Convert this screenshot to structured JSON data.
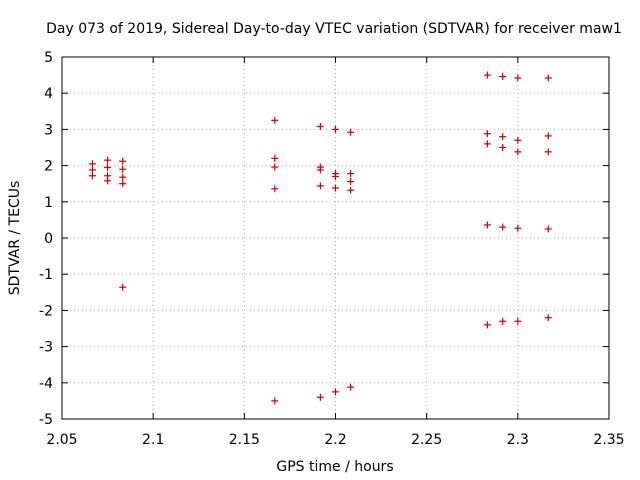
{
  "chart_data": {
    "type": "scatter",
    "title": "Day 073 of 2019, Sidereal Day-to-day VTEC variation (SDTVAR) for receiver maw1",
    "xlabel": "GPS time / hours",
    "ylabel": "SDTVAR / TECUs",
    "xlim": [
      2.05,
      2.35
    ],
    "ylim": [
      -5,
      5
    ],
    "xticks": [
      2.05,
      2.1,
      2.15,
      2.2,
      2.25,
      2.3,
      2.35
    ],
    "yticks": [
      -5,
      -4,
      -3,
      -2,
      -1,
      0,
      1,
      2,
      3,
      4,
      5
    ],
    "xtick_labels": [
      "2.05",
      "2.1",
      "2.15",
      "2.2",
      "2.25",
      "2.3",
      "2.35"
    ],
    "ytick_labels": [
      "-5",
      "-4",
      "-3",
      "-2",
      "-1",
      "0",
      "1",
      "2",
      "3",
      "4",
      "5"
    ],
    "grid": true,
    "marker": "+",
    "color": "#cc0000",
    "series": [
      {
        "name": "maw1",
        "points": [
          [
            2.0667,
            2.05
          ],
          [
            2.0667,
            1.88
          ],
          [
            2.0667,
            1.72
          ],
          [
            2.075,
            2.15
          ],
          [
            2.075,
            1.95
          ],
          [
            2.075,
            1.72
          ],
          [
            2.075,
            1.58
          ],
          [
            2.0833,
            2.12
          ],
          [
            2.0833,
            1.9
          ],
          [
            2.0833,
            1.68
          ],
          [
            2.0833,
            1.5
          ],
          [
            2.0833,
            -1.36
          ],
          [
            2.1667,
            3.25
          ],
          [
            2.1667,
            2.2
          ],
          [
            2.1667,
            1.96
          ],
          [
            2.1667,
            1.36
          ],
          [
            2.1667,
            -4.5
          ],
          [
            2.1917,
            3.08
          ],
          [
            2.1917,
            1.96
          ],
          [
            2.1917,
            1.88
          ],
          [
            2.1917,
            1.44
          ],
          [
            2.1917,
            -4.4
          ],
          [
            2.2,
            3.0
          ],
          [
            2.2,
            1.78
          ],
          [
            2.2,
            1.7
          ],
          [
            2.2,
            1.38
          ],
          [
            2.2,
            -4.25
          ],
          [
            2.2083,
            2.92
          ],
          [
            2.2083,
            1.78
          ],
          [
            2.2083,
            1.56
          ],
          [
            2.2083,
            1.32
          ],
          [
            2.2083,
            -4.12
          ],
          [
            2.2833,
            4.5
          ],
          [
            2.2833,
            2.88
          ],
          [
            2.2833,
            2.6
          ],
          [
            2.2833,
            0.36
          ],
          [
            2.2833,
            -2.4
          ],
          [
            2.2917,
            4.46
          ],
          [
            2.2917,
            2.8
          ],
          [
            2.2917,
            2.5
          ],
          [
            2.2917,
            0.3
          ],
          [
            2.2917,
            -2.3
          ],
          [
            2.3,
            4.42
          ],
          [
            2.3,
            2.7
          ],
          [
            2.3,
            2.38
          ],
          [
            2.3,
            0.27
          ],
          [
            2.3,
            -2.3
          ],
          [
            2.3167,
            4.42
          ],
          [
            2.3167,
            2.82
          ],
          [
            2.3167,
            2.38
          ],
          [
            2.3167,
            0.25
          ],
          [
            2.3167,
            -2.2
          ]
        ]
      }
    ]
  }
}
